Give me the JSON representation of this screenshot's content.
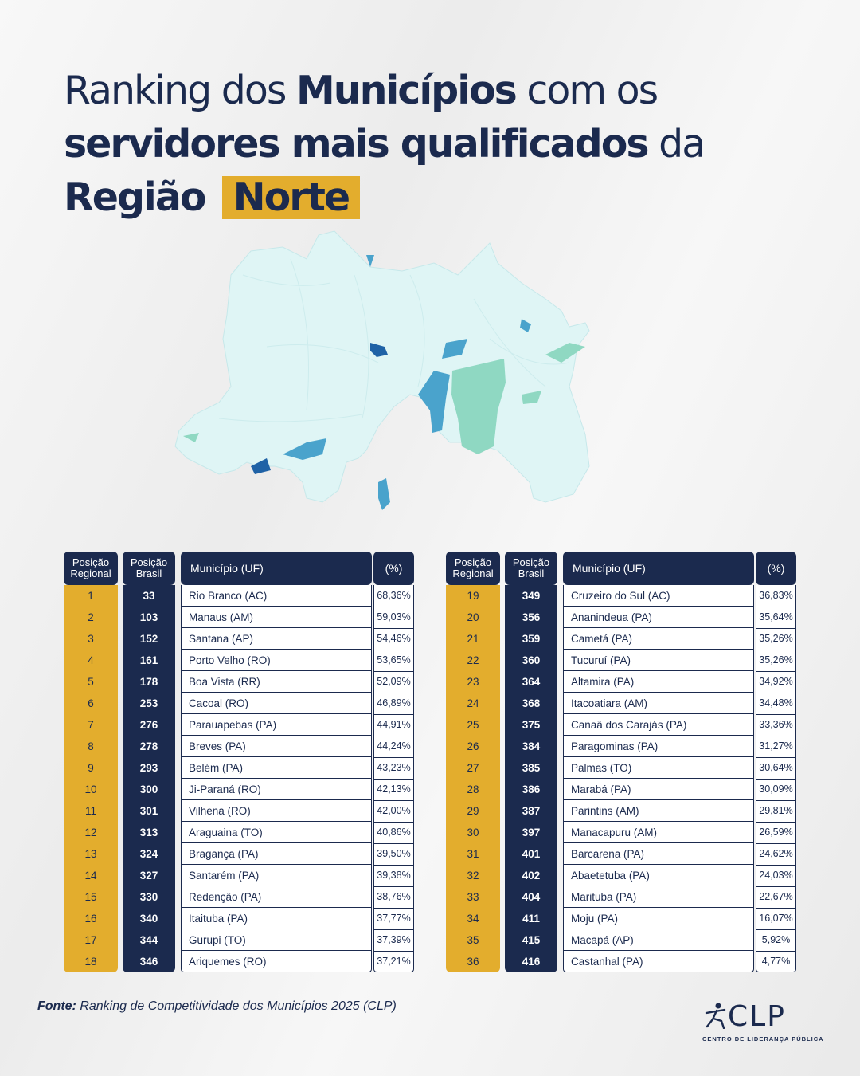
{
  "title": {
    "part1": "Ranking dos ",
    "part2": "Municípios",
    "part3": " com os",
    "part4": "servidores mais qualificados",
    "part5": " da",
    "part6": "Região ",
    "part7": "Norte"
  },
  "map": {
    "icon": "northern-region-map-icon",
    "base_color": "#dff5f5",
    "accent_colors": [
      "#1f62a6",
      "#4aa3cc",
      "#8fd8c2"
    ]
  },
  "headers": {
    "regional_1": "Posição",
    "regional_2": "Regional",
    "brasil_1": "Posição",
    "brasil_2": "Brasil",
    "municipio": "Município (UF)",
    "pct": "(%)"
  },
  "left_rows": [
    {
      "reg": "1",
      "br": "33",
      "mun": "Rio Branco (AC)",
      "pct": "68,36%"
    },
    {
      "reg": "2",
      "br": "103",
      "mun": "Manaus (AM)",
      "pct": "59,03%"
    },
    {
      "reg": "3",
      "br": "152",
      "mun": "Santana (AP)",
      "pct": "54,46%"
    },
    {
      "reg": "4",
      "br": "161",
      "mun": "Porto Velho (RO)",
      "pct": "53,65%"
    },
    {
      "reg": "5",
      "br": "178",
      "mun": "Boa Vista (RR)",
      "pct": "52,09%"
    },
    {
      "reg": "6",
      "br": "253",
      "mun": "Cacoal (RO)",
      "pct": "46,89%"
    },
    {
      "reg": "7",
      "br": "276",
      "mun": "Parauapebas (PA)",
      "pct": "44,91%"
    },
    {
      "reg": "8",
      "br": "278",
      "mun": "Breves (PA)",
      "pct": "44,24%"
    },
    {
      "reg": "9",
      "br": "293",
      "mun": "Belém (PA)",
      "pct": "43,23%"
    },
    {
      "reg": "10",
      "br": "300",
      "mun": "Ji-Paraná (RO)",
      "pct": "42,13%"
    },
    {
      "reg": "11",
      "br": "301",
      "mun": "Vilhena (RO)",
      "pct": "42,00%"
    },
    {
      "reg": "12",
      "br": "313",
      "mun": "Araguaina (TO)",
      "pct": "40,86%"
    },
    {
      "reg": "13",
      "br": "324",
      "mun": "Bragança (PA)",
      "pct": "39,50%"
    },
    {
      "reg": "14",
      "br": "327",
      "mun": "Santarém (PA)",
      "pct": "39,38%"
    },
    {
      "reg": "15",
      "br": "330",
      "mun": "Redenção (PA)",
      "pct": "38,76%"
    },
    {
      "reg": "16",
      "br": "340",
      "mun": "Itaituba (PA)",
      "pct": "37,77%"
    },
    {
      "reg": "17",
      "br": "344",
      "mun": "Gurupi (TO)",
      "pct": "37,39%"
    },
    {
      "reg": "18",
      "br": "346",
      "mun": "Ariquemes (RO)",
      "pct": "37,21%"
    }
  ],
  "right_rows": [
    {
      "reg": "19",
      "br": "349",
      "mun": "Cruzeiro do Sul (AC)",
      "pct": "36,83%"
    },
    {
      "reg": "20",
      "br": "356",
      "mun": "Ananindeua (PA)",
      "pct": "35,64%"
    },
    {
      "reg": "21",
      "br": "359",
      "mun": "Cametá (PA)",
      "pct": "35,26%"
    },
    {
      "reg": "22",
      "br": "360",
      "mun": "Tucuruí (PA)",
      "pct": "35,26%"
    },
    {
      "reg": "23",
      "br": "364",
      "mun": "Altamira (PA)",
      "pct": "34,92%"
    },
    {
      "reg": "24",
      "br": "368",
      "mun": "Itacoatiara (AM)",
      "pct": "34,48%"
    },
    {
      "reg": "25",
      "br": "375",
      "mun": "Canaã dos Carajás (PA)",
      "pct": "33,36%"
    },
    {
      "reg": "26",
      "br": "384",
      "mun": "Paragominas (PA)",
      "pct": "31,27%"
    },
    {
      "reg": "27",
      "br": "385",
      "mun": "Palmas (TO)",
      "pct": "30,64%"
    },
    {
      "reg": "28",
      "br": "386",
      "mun": "Marabá (PA)",
      "pct": "30,09%"
    },
    {
      "reg": "29",
      "br": "387",
      "mun": "Parintins (AM)",
      "pct": "29,81%"
    },
    {
      "reg": "30",
      "br": "397",
      "mun": "Manacapuru (AM)",
      "pct": "26,59%"
    },
    {
      "reg": "31",
      "br": "401",
      "mun": "Barcarena (PA)",
      "pct": "24,62%"
    },
    {
      "reg": "32",
      "br": "402",
      "mun": "Abaetetuba (PA)",
      "pct": "24,03%"
    },
    {
      "reg": "33",
      "br": "404",
      "mun": "Marituba (PA)",
      "pct": "22,67%"
    },
    {
      "reg": "34",
      "br": "411",
      "mun": "Moju (PA)",
      "pct": "16,07%"
    },
    {
      "reg": "35",
      "br": "415",
      "mun": "Macapá (AP)",
      "pct": "5,92%"
    },
    {
      "reg": "36",
      "br": "416",
      "mun": "Castanhal (PA)",
      "pct": "4,77%"
    }
  ],
  "source": {
    "label": "Fonte:",
    "text": " Ranking de Competitividade dos Municípios 2025 (CLP)"
  },
  "logo": {
    "icon": "clp-figure-icon",
    "name": "CLP",
    "subtitle": "CENTRO DE LIDERANÇA PÚBLICA"
  }
}
